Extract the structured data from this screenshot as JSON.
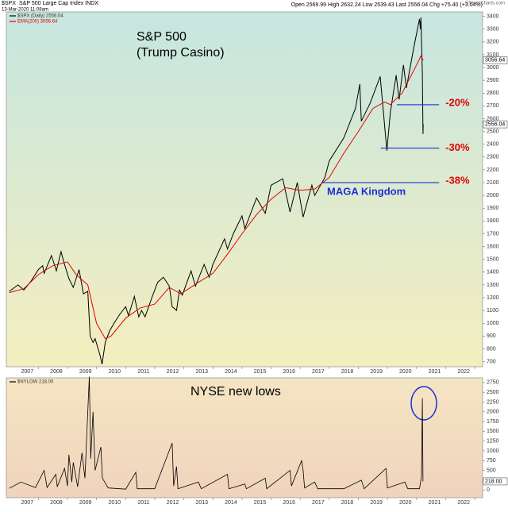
{
  "header": {
    "symbol": "$SPX",
    "name": "S&P 500 Large Cap Index INDX",
    "date": "13-Mar-2020 11:08am",
    "quote": "Open 2569.99  High 2632.24  Low 2539.43  Last 2556.04  Chg +75.40 (+3.04%)",
    "source": "©StockCharts.com"
  },
  "chart_data": [
    {
      "type": "line",
      "title": "S&P 500",
      "subtitle": "(Trump Casino)",
      "xlim": [
        2005.9,
        2022.27
      ],
      "xticks": [
        2007,
        2008,
        2009,
        2010,
        2011,
        2012,
        2013,
        2014,
        2015,
        2016,
        2017,
        2018,
        2019,
        2020,
        2021,
        2022
      ],
      "ylim": [
        660,
        3435
      ],
      "yticks": [
        700,
        800,
        900,
        1000,
        1100,
        1200,
        1300,
        1400,
        1500,
        1600,
        1700,
        1800,
        1900,
        2000,
        2100,
        2200,
        2300,
        2400,
        2500,
        2600,
        2700,
        2800,
        2900,
        3000,
        3100,
        3200,
        3300,
        3400
      ],
      "series": [
        {
          "name": "$SPX (Daily) 2556.04",
          "color": "#000000",
          "x": [
            2006.0,
            2006.3,
            2006.5,
            2006.75,
            2007.0,
            2007.15,
            2007.2,
            2007.45,
            2007.55,
            2007.62,
            2007.78,
            2007.9,
            2008.05,
            2008.2,
            2008.4,
            2008.55,
            2008.7,
            2008.78,
            2008.88,
            2008.95,
            2009.12,
            2009.19,
            2009.3,
            2009.45,
            2009.6,
            2009.8,
            2010.0,
            2010.1,
            2010.3,
            2010.45,
            2010.55,
            2010.67,
            2010.9,
            2011.1,
            2011.3,
            2011.5,
            2011.6,
            2011.75,
            2011.85,
            2011.95,
            2012.25,
            2012.4,
            2012.7,
            2012.87,
            2013.0,
            2013.4,
            2013.5,
            2013.7,
            2014.0,
            2014.1,
            2014.5,
            2014.8,
            2015.0,
            2015.4,
            2015.65,
            2015.9,
            2016.1,
            2016.4,
            2016.5,
            2016.85,
            2017.0,
            2017.5,
            2017.9,
            2018.05,
            2018.1,
            2018.4,
            2018.75,
            2018.98,
            2019.1,
            2019.3,
            2019.4,
            2019.55,
            2019.65,
            2019.9,
            2020.1,
            2020.13,
            2020.15,
            2020.2,
            2020.22,
            2020.23
          ],
          "values": [
            1250,
            1300,
            1260,
            1330,
            1420,
            1450,
            1390,
            1530,
            1460,
            1410,
            1560,
            1460,
            1350,
            1280,
            1420,
            1230,
            1250,
            900,
            850,
            880,
            750,
            680,
            850,
            940,
            1000,
            1070,
            1130,
            1060,
            1210,
            1050,
            1100,
            1050,
            1200,
            1320,
            1360,
            1290,
            1130,
            1100,
            1260,
            1220,
            1410,
            1290,
            1460,
            1360,
            1460,
            1660,
            1580,
            1700,
            1840,
            1740,
            1980,
            1860,
            2080,
            2130,
            1870,
            2100,
            1830,
            2080,
            2000,
            2140,
            2270,
            2450,
            2680,
            2870,
            2580,
            2720,
            2930,
            2350,
            2650,
            2940,
            2750,
            3020,
            2840,
            3150,
            3380,
            3300,
            3390,
            2960,
            2480,
            2556
          ]
        },
        {
          "name": "EMA(200) 3056.64",
          "color": "#e00000",
          "x": [
            2006.0,
            2006.5,
            2007.0,
            2007.5,
            2008.0,
            2008.3,
            2008.7,
            2009.0,
            2009.3,
            2009.5,
            2010.0,
            2010.5,
            2011.0,
            2011.5,
            2011.9,
            2012.5,
            2013.0,
            2013.5,
            2014.0,
            2014.5,
            2015.0,
            2015.5,
            2016.0,
            2016.5,
            2017.0,
            2017.5,
            2018.0,
            2018.5,
            2018.9,
            2019.1,
            2019.5,
            2020.0,
            2020.15,
            2020.23
          ],
          "values": [
            1240,
            1270,
            1380,
            1450,
            1480,
            1380,
            1300,
            1000,
            880,
            900,
            1040,
            1120,
            1150,
            1280,
            1230,
            1320,
            1390,
            1540,
            1700,
            1850,
            1970,
            2060,
            2040,
            2050,
            2140,
            2330,
            2500,
            2680,
            2730,
            2710,
            2800,
            3020,
            3090,
            3057
          ]
        }
      ],
      "last_labels": [
        "3056.64",
        "2556.04"
      ],
      "annotations": [
        {
          "label": "-20%",
          "value": 2709,
          "x_start": 2019.32
        },
        {
          "label": "-30%",
          "value": 2370,
          "x_start": 2018.77
        },
        {
          "label": "-38%",
          "value": 2100,
          "x_start": 2016.73
        }
      ],
      "note": "MAGA Kingdom"
    },
    {
      "type": "spikes",
      "title": "NYSE new lows",
      "xlim": [
        2005.9,
        2022.27
      ],
      "xticks": [
        2007,
        2008,
        2009,
        2010,
        2011,
        2012,
        2013,
        2014,
        2015,
        2016,
        2017,
        2018,
        2019,
        2020,
        2021,
        2022
      ],
      "ylim": [
        -200,
        2870
      ],
      "yticks": [
        0,
        250,
        500,
        750,
        1000,
        1250,
        1500,
        1750,
        2000,
        2250,
        2500,
        2750
      ],
      "series": [
        {
          "name": "$NYLOW 218.00",
          "color": "#000000",
          "x": [
            2006.0,
            2006.4,
            2006.9,
            2007.2,
            2007.3,
            2007.6,
            2007.65,
            2007.9,
            2008.0,
            2008.05,
            2008.15,
            2008.2,
            2008.35,
            2008.5,
            2008.6,
            2008.75,
            2008.8,
            2008.88,
            2008.95,
            2009.15,
            2009.2,
            2009.4,
            2010.0,
            2010.35,
            2010.4,
            2011.0,
            2011.6,
            2011.65,
            2011.75,
            2011.8,
            2012.5,
            2012.6,
            2013.5,
            2013.55,
            2014.1,
            2014.15,
            2014.8,
            2014.85,
            2015.65,
            2015.7,
            2016.05,
            2016.1,
            2016.15,
            2016.5,
            2016.6,
            2017.5,
            2018.1,
            2018.2,
            2018.95,
            2019.0,
            2019.6,
            2019.7,
            2020.1,
            2020.17,
            2020.2,
            2020.22
          ],
          "values": [
            40,
            200,
            60,
            500,
            60,
            400,
            80,
            550,
            100,
            900,
            200,
            700,
            80,
            950,
            300,
            2900,
            800,
            2000,
            500,
            1100,
            300,
            50,
            20,
            450,
            30,
            30,
            1200,
            100,
            600,
            30,
            200,
            30,
            400,
            30,
            150,
            30,
            300,
            30,
            500,
            100,
            750,
            500,
            50,
            200,
            30,
            30,
            250,
            30,
            550,
            50,
            200,
            30,
            30,
            350,
            2350,
            218
          ]
        }
      ],
      "last_label": "218.00"
    }
  ]
}
